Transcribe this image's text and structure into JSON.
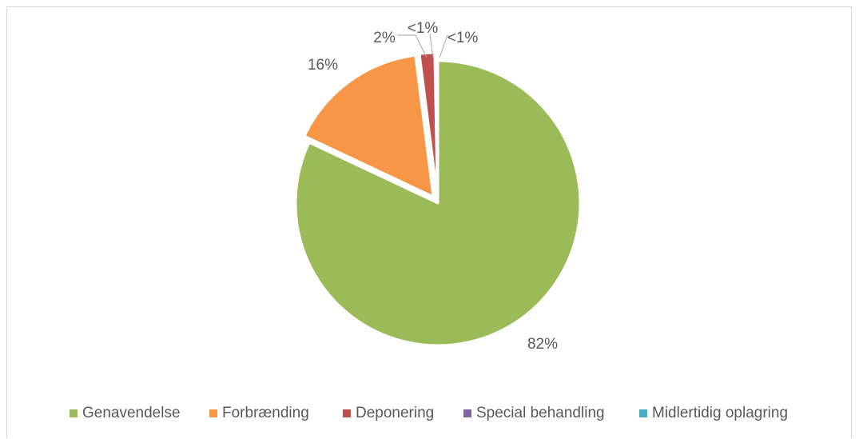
{
  "chart_data": {
    "type": "pie",
    "title": "",
    "start_angle_deg": 0,
    "direction": "clockwise",
    "exploded": true,
    "legend_position": "bottom",
    "slices": [
      {
        "label": "Genavendelse",
        "value": 82,
        "data_label": "82%",
        "color": "#9bbb59"
      },
      {
        "label": "Forbrænding",
        "value": 16,
        "data_label": "16%",
        "color": "#f79646"
      },
      {
        "label": "Deponering",
        "value": 1.7,
        "data_label": "2%",
        "color": "#c0504d"
      },
      {
        "label": "Special behandling",
        "value": 0.2,
        "data_label": "<1%",
        "color": "#8064a2"
      },
      {
        "label": "Midlertidig oplagring",
        "value": 0.1,
        "data_label": "<1%",
        "color": "#4bacc6"
      }
    ]
  }
}
